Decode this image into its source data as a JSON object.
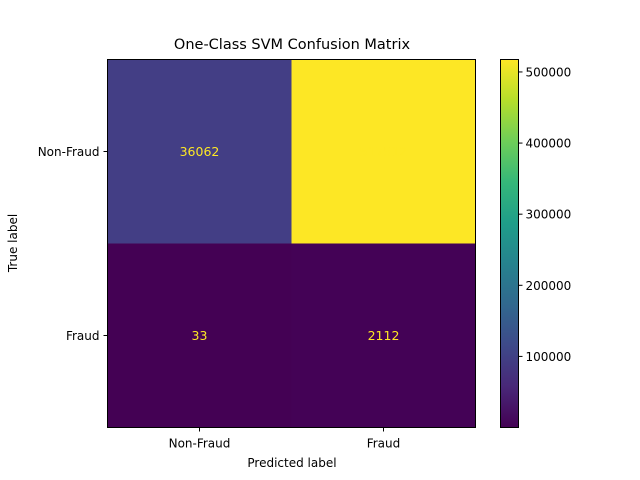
{
  "chart_data": {
    "type": "heatmap",
    "title": "One-Class SVM Confusion Matrix",
    "xlabel": "Predicted label",
    "ylabel": "True label",
    "x_categories": [
      "Non-Fraud",
      "Fraud"
    ],
    "y_categories": [
      "Non-Fraud",
      "Fraud"
    ],
    "values": [
      [
        36062,
        517512
      ],
      [
        33,
        2112
      ]
    ],
    "colormap": "viridis",
    "colorbar_ticks": [
      100000,
      200000,
      300000,
      400000,
      500000
    ],
    "colorbar_tick_labels": [
      "100000",
      "200000",
      "300000",
      "400000",
      "500000"
    ],
    "colorbar_range": [
      33,
      517512
    ],
    "cell_colors": [
      "#433e85",
      "#fde725",
      "#440154",
      "#440256"
    ],
    "label_color": "#fde725",
    "grid": false
  }
}
